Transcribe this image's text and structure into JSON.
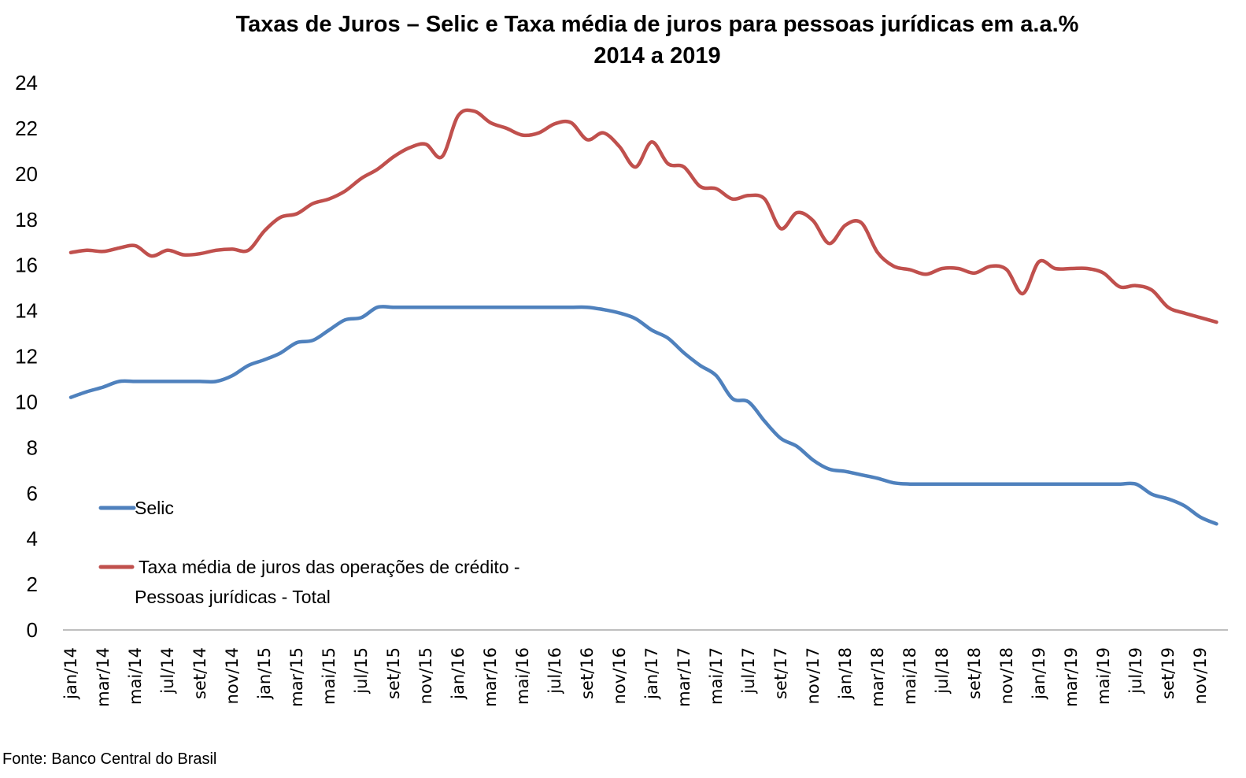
{
  "chart_data": {
    "type": "line",
    "title": "Taxas de Juros – Selic e Taxa média de juros para pessoas jurídicas em a.a.%",
    "subtitle": "2014 a 2019",
    "xlabel": "",
    "ylabel": "",
    "ylim": [
      0,
      24
    ],
    "yticks": [
      "0",
      "2",
      "4",
      "6",
      "8",
      "10",
      "12",
      "14",
      "16",
      "18",
      "20",
      "22",
      "24"
    ],
    "grid": false,
    "legend_position": "bottom-left",
    "x": [
      "jan/14",
      "fev/14",
      "mar/14",
      "abr/14",
      "mai/14",
      "jun/14",
      "jul/14",
      "ago/14",
      "set/14",
      "out/14",
      "nov/14",
      "dez/14",
      "jan/15",
      "fev/15",
      "mar/15",
      "abr/15",
      "mai/15",
      "jun/15",
      "jul/15",
      "ago/15",
      "set/15",
      "out/15",
      "nov/15",
      "dez/15",
      "jan/16",
      "fev/16",
      "mar/16",
      "abr/16",
      "mai/16",
      "jun/16",
      "jul/16",
      "ago/16",
      "set/16",
      "out/16",
      "nov/16",
      "dez/16",
      "jan/17",
      "fev/17",
      "mar/17",
      "abr/17",
      "mai/17",
      "jun/17",
      "jul/17",
      "ago/17",
      "set/17",
      "out/17",
      "nov/17",
      "dez/17",
      "jan/18",
      "fev/18",
      "mar/18",
      "abr/18",
      "mai/18",
      "jun/18",
      "jul/18",
      "ago/18",
      "set/18",
      "out/18",
      "nov/18",
      "dez/18",
      "jan/19",
      "fev/19",
      "mar/19",
      "abr/19",
      "mai/19",
      "jun/19",
      "jul/19",
      "ago/19",
      "set/19",
      "out/19",
      "nov/19",
      "dez/19"
    ],
    "xtick_labels": [
      "jan/14",
      "mar/14",
      "mai/14",
      "jul/14",
      "set/14",
      "nov/14",
      "jan/15",
      "mar/15",
      "mai/15",
      "jul/15",
      "set/15",
      "nov/15",
      "jan/16",
      "mar/16",
      "mai/16",
      "jul/16",
      "set/16",
      "nov/16",
      "jan/17",
      "mar/17",
      "mai/17",
      "jul/17",
      "set/17",
      "nov/17",
      "jan/18",
      "mar/18",
      "mai/18",
      "jul/18",
      "set/18",
      "nov/18",
      "jan/19",
      "mar/19",
      "mai/19",
      "jul/19",
      "set/19",
      "nov/19"
    ],
    "series": [
      {
        "name": "Selic",
        "color": "#4f81bd",
        "values": [
          10.2,
          10.45,
          10.65,
          10.9,
          10.9,
          10.9,
          10.9,
          10.9,
          10.9,
          10.9,
          11.15,
          11.6,
          11.85,
          12.15,
          12.6,
          12.7,
          13.15,
          13.6,
          13.7,
          14.15,
          14.15,
          14.15,
          14.15,
          14.15,
          14.15,
          14.15,
          14.15,
          14.15,
          14.15,
          14.15,
          14.15,
          14.15,
          14.15,
          14.05,
          13.9,
          13.65,
          13.15,
          12.8,
          12.15,
          11.6,
          11.15,
          10.15,
          10.0,
          9.15,
          8.4,
          8.05,
          7.45,
          7.05,
          6.95,
          6.8,
          6.65,
          6.45,
          6.4,
          6.4,
          6.4,
          6.4,
          6.4,
          6.4,
          6.4,
          6.4,
          6.4,
          6.4,
          6.4,
          6.4,
          6.4,
          6.4,
          6.4,
          5.95,
          5.75,
          5.45,
          4.95,
          4.65
        ]
      },
      {
        "name": "Taxa média de juros das operações de crédito - Pessoas jurídicas - Total",
        "color": "#c0504d",
        "values": [
          16.55,
          16.65,
          16.6,
          16.75,
          16.85,
          16.4,
          16.65,
          16.45,
          16.5,
          16.65,
          16.7,
          16.65,
          17.5,
          18.1,
          18.25,
          18.7,
          18.9,
          19.25,
          19.8,
          20.2,
          20.75,
          21.15,
          21.3,
          20.75,
          22.55,
          22.75,
          22.25,
          22.0,
          21.7,
          21.8,
          22.2,
          22.25,
          21.5,
          21.8,
          21.2,
          20.3,
          21.4,
          20.45,
          20.3,
          19.45,
          19.35,
          18.9,
          19.05,
          18.9,
          17.6,
          18.3,
          17.95,
          16.95,
          17.75,
          17.85,
          16.55,
          15.95,
          15.8,
          15.6,
          15.85,
          15.85,
          15.65,
          15.95,
          15.8,
          14.75,
          16.15,
          15.85,
          15.85,
          15.85,
          15.65,
          15.05,
          15.1,
          14.9,
          14.15,
          13.9,
          13.7,
          13.5
        ]
      }
    ]
  },
  "source": "Fonte: Banco Central do Brasil"
}
